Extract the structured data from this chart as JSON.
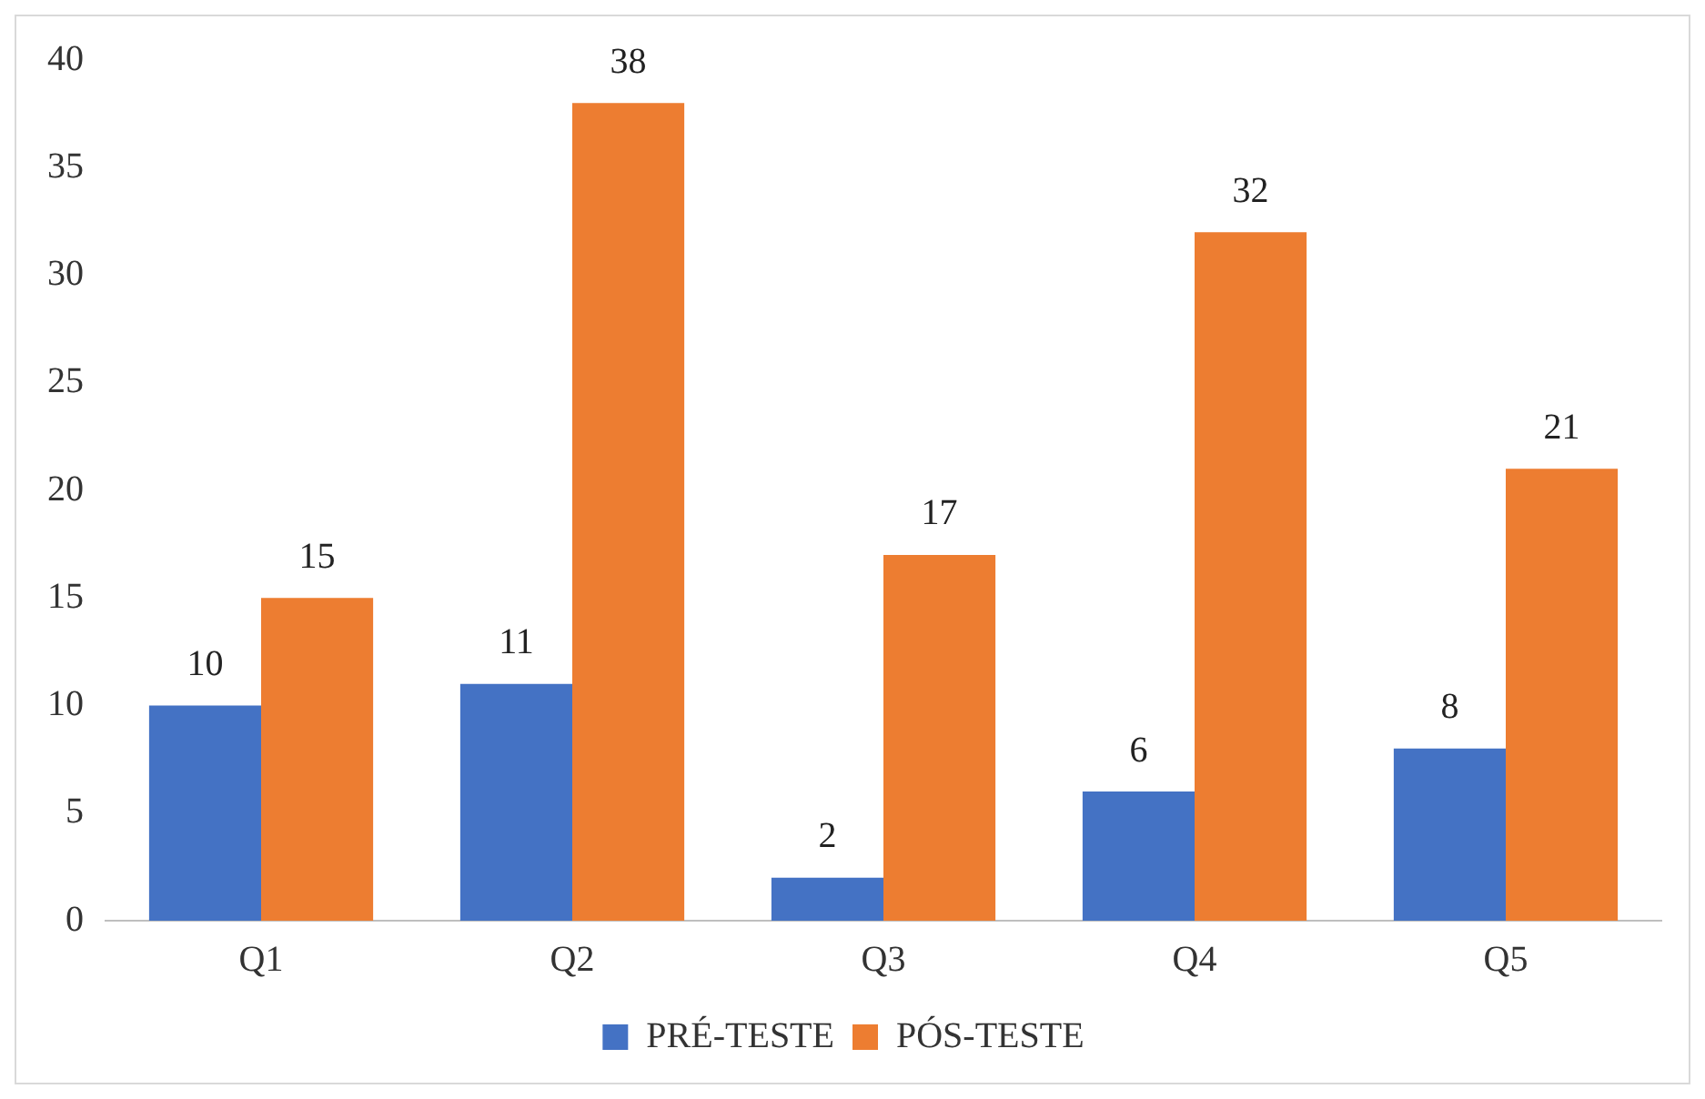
{
  "chart_data": {
    "type": "bar",
    "categories": [
      "Q1",
      "Q2",
      "Q3",
      "Q4",
      "Q5"
    ],
    "series": [
      {
        "name": "PRÉ-TESTE",
        "color": "#4472c4",
        "values": [
          10,
          11,
          2,
          6,
          8
        ]
      },
      {
        "name": "PÓS-TESTE",
        "color": "#ed7d31",
        "values": [
          15,
          38,
          17,
          32,
          21
        ]
      }
    ],
    "ylim": [
      0,
      40
    ],
    "yticks": [
      0,
      5,
      10,
      15,
      20,
      25,
      30,
      35,
      40
    ],
    "grid": false,
    "legend": "bottom",
    "data_labels": true
  }
}
